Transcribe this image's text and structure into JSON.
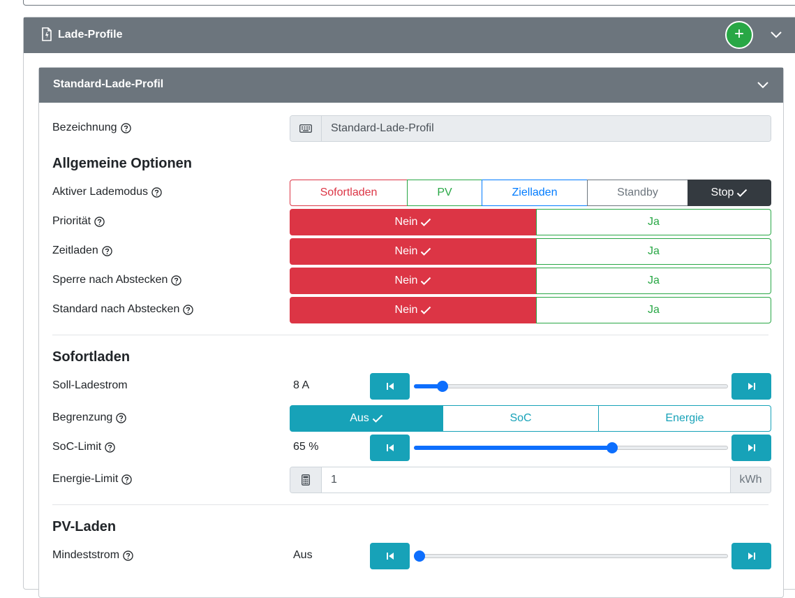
{
  "outer": {
    "title": "Lade-Profile",
    "add_label": "+"
  },
  "profile": {
    "title": "Standard-Lade-Profil",
    "name_label": "Bezeichnung",
    "name_value": "Standard-Lade-Profil"
  },
  "general": {
    "heading": "Allgemeine Optionen",
    "mode_label": "Aktiver Lademodus",
    "modes": [
      {
        "label": "Sofortladen",
        "color": "#dc3545"
      },
      {
        "label": "PV",
        "color": "#28a745"
      },
      {
        "label": "Zielladen",
        "color": "#007bff"
      },
      {
        "label": "Standby",
        "color": "#6c757d"
      },
      {
        "label": "Stop",
        "color": "#343a40",
        "active": true
      }
    ],
    "toggles": [
      {
        "label": "Priorität",
        "no": "Nein",
        "yes": "Ja",
        "selected": "Nein"
      },
      {
        "label": "Zeitladen",
        "no": "Nein",
        "yes": "Ja",
        "selected": "Nein"
      },
      {
        "label": "Sperre nach Abstecken",
        "no": "Nein",
        "yes": "Ja",
        "selected": "Nein"
      },
      {
        "label": "Standard nach Abstecken",
        "no": "Nein",
        "yes": "Ja",
        "selected": "Nein"
      }
    ]
  },
  "sofort": {
    "heading": "Sofortladen",
    "current_label": "Soll-Ladestrom",
    "current_value": "8 A",
    "current_fraction": 0.09,
    "limit_label": "Begrenzung",
    "limit_options": [
      "Aus",
      "SoC",
      "Energie"
    ],
    "limit_selected": "Aus",
    "soc_label": "SoC-Limit",
    "soc_value": "65 %",
    "soc_fraction": 0.63,
    "energy_label": "Energie-Limit",
    "energy_value": "1",
    "energy_unit": "kWh"
  },
  "pv": {
    "heading": "PV-Laden",
    "min_label": "Mindeststrom",
    "min_value": "Aus",
    "min_fraction": 0.0
  },
  "colors": {
    "header_gray": "#6c757d",
    "danger": "#dc3545",
    "success": "#28a745",
    "info": "#17a2b8",
    "primary": "#0d6efd"
  },
  "icons": [
    "document-icon",
    "plus-icon",
    "chevron-down-icon",
    "help-icon",
    "keyboard-icon",
    "check-icon",
    "skip-start-icon",
    "skip-end-icon",
    "calculator-icon"
  ]
}
